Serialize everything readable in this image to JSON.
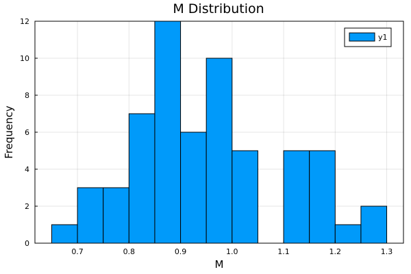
{
  "chart_data": {
    "type": "bar",
    "title": "M Distribution",
    "xlabel": "M",
    "ylabel": "Frequency",
    "xlim": [
      0.6175,
      1.3325
    ],
    "ylim": [
      0,
      12
    ],
    "xticks": [
      0.7,
      0.8,
      0.9,
      1.0,
      1.1,
      1.2,
      1.3
    ],
    "xtick_labels": [
      "0.7",
      "0.8",
      "0.9",
      "1.0",
      "1.1",
      "1.2",
      "1.3"
    ],
    "yticks": [
      0,
      2,
      4,
      6,
      8,
      10,
      12
    ],
    "ytick_labels": [
      "0",
      "2",
      "4",
      "6",
      "8",
      "10",
      "12"
    ],
    "grid": true,
    "legend_position": "top-right",
    "series": [
      {
        "name": "y1",
        "color": "#009AFA",
        "bins": [
          {
            "start": 0.65,
            "end": 0.7,
            "count": 1
          },
          {
            "start": 0.7,
            "end": 0.75,
            "count": 3
          },
          {
            "start": 0.75,
            "end": 0.8,
            "count": 3
          },
          {
            "start": 0.8,
            "end": 0.85,
            "count": 7
          },
          {
            "start": 0.85,
            "end": 0.9,
            "count": 12
          },
          {
            "start": 0.9,
            "end": 0.95,
            "count": 6
          },
          {
            "start": 0.95,
            "end": 1.0,
            "count": 10
          },
          {
            "start": 1.0,
            "end": 1.05,
            "count": 5
          },
          {
            "start": 1.05,
            "end": 1.1,
            "count": 0
          },
          {
            "start": 1.1,
            "end": 1.15,
            "count": 5
          },
          {
            "start": 1.15,
            "end": 1.2,
            "count": 5
          },
          {
            "start": 1.2,
            "end": 1.25,
            "count": 1
          },
          {
            "start": 1.25,
            "end": 1.3,
            "count": 2
          }
        ]
      }
    ]
  }
}
